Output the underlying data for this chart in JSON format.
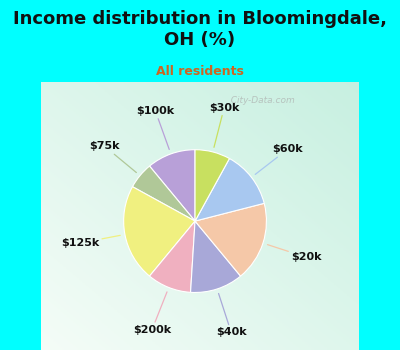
{
  "title": "Income distribution in Bloomingdale,\nOH (%)",
  "subtitle": "All residents",
  "bg_color": "#00FFFF",
  "labels": [
    "$100k",
    "$75k",
    "$125k",
    "$200k",
    "$40k",
    "$20k",
    "$60k",
    "$30k"
  ],
  "values": [
    11,
    6,
    22,
    10,
    12,
    18,
    13,
    8
  ],
  "colors": [
    "#b8a0d8",
    "#b0c898",
    "#f0f080",
    "#f0b0c0",
    "#a8a8d8",
    "#f5c8a8",
    "#a8c8f0",
    "#c8e060"
  ],
  "startangle": 90,
  "title_fontsize": 13,
  "subtitle_fontsize": 9,
  "label_fontsize": 8,
  "watermark": "  City-Data.com",
  "title_color": "#111111",
  "subtitle_color": "#cc6622"
}
